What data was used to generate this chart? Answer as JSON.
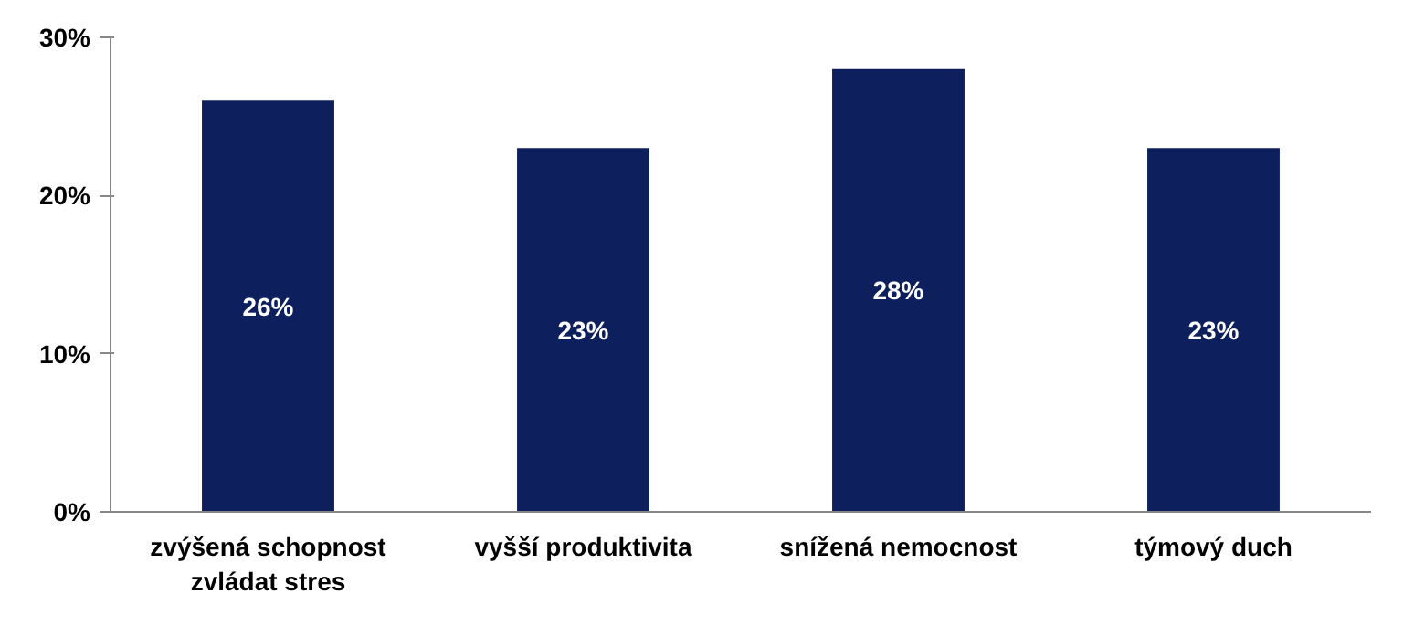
{
  "chart_data": {
    "type": "bar",
    "categories": [
      "zvýšená schopnost zvládat stres",
      "vyšší produktivita",
      "snížená nemocnost",
      "týmový duch"
    ],
    "values": [
      26,
      23,
      28,
      23
    ],
    "color": "#0d1f5c",
    "data_labels": true,
    "value_labels": [
      "26%",
      "23%",
      "28%",
      "23%"
    ],
    "ylim": [
      0,
      30
    ],
    "yticks": [
      {
        "value": 0,
        "label": "0%"
      },
      {
        "value": 10,
        "label": "10%"
      },
      {
        "value": 20,
        "label": "20%"
      },
      {
        "value": 30,
        "label": "30%"
      }
    ],
    "grid": false
  }
}
